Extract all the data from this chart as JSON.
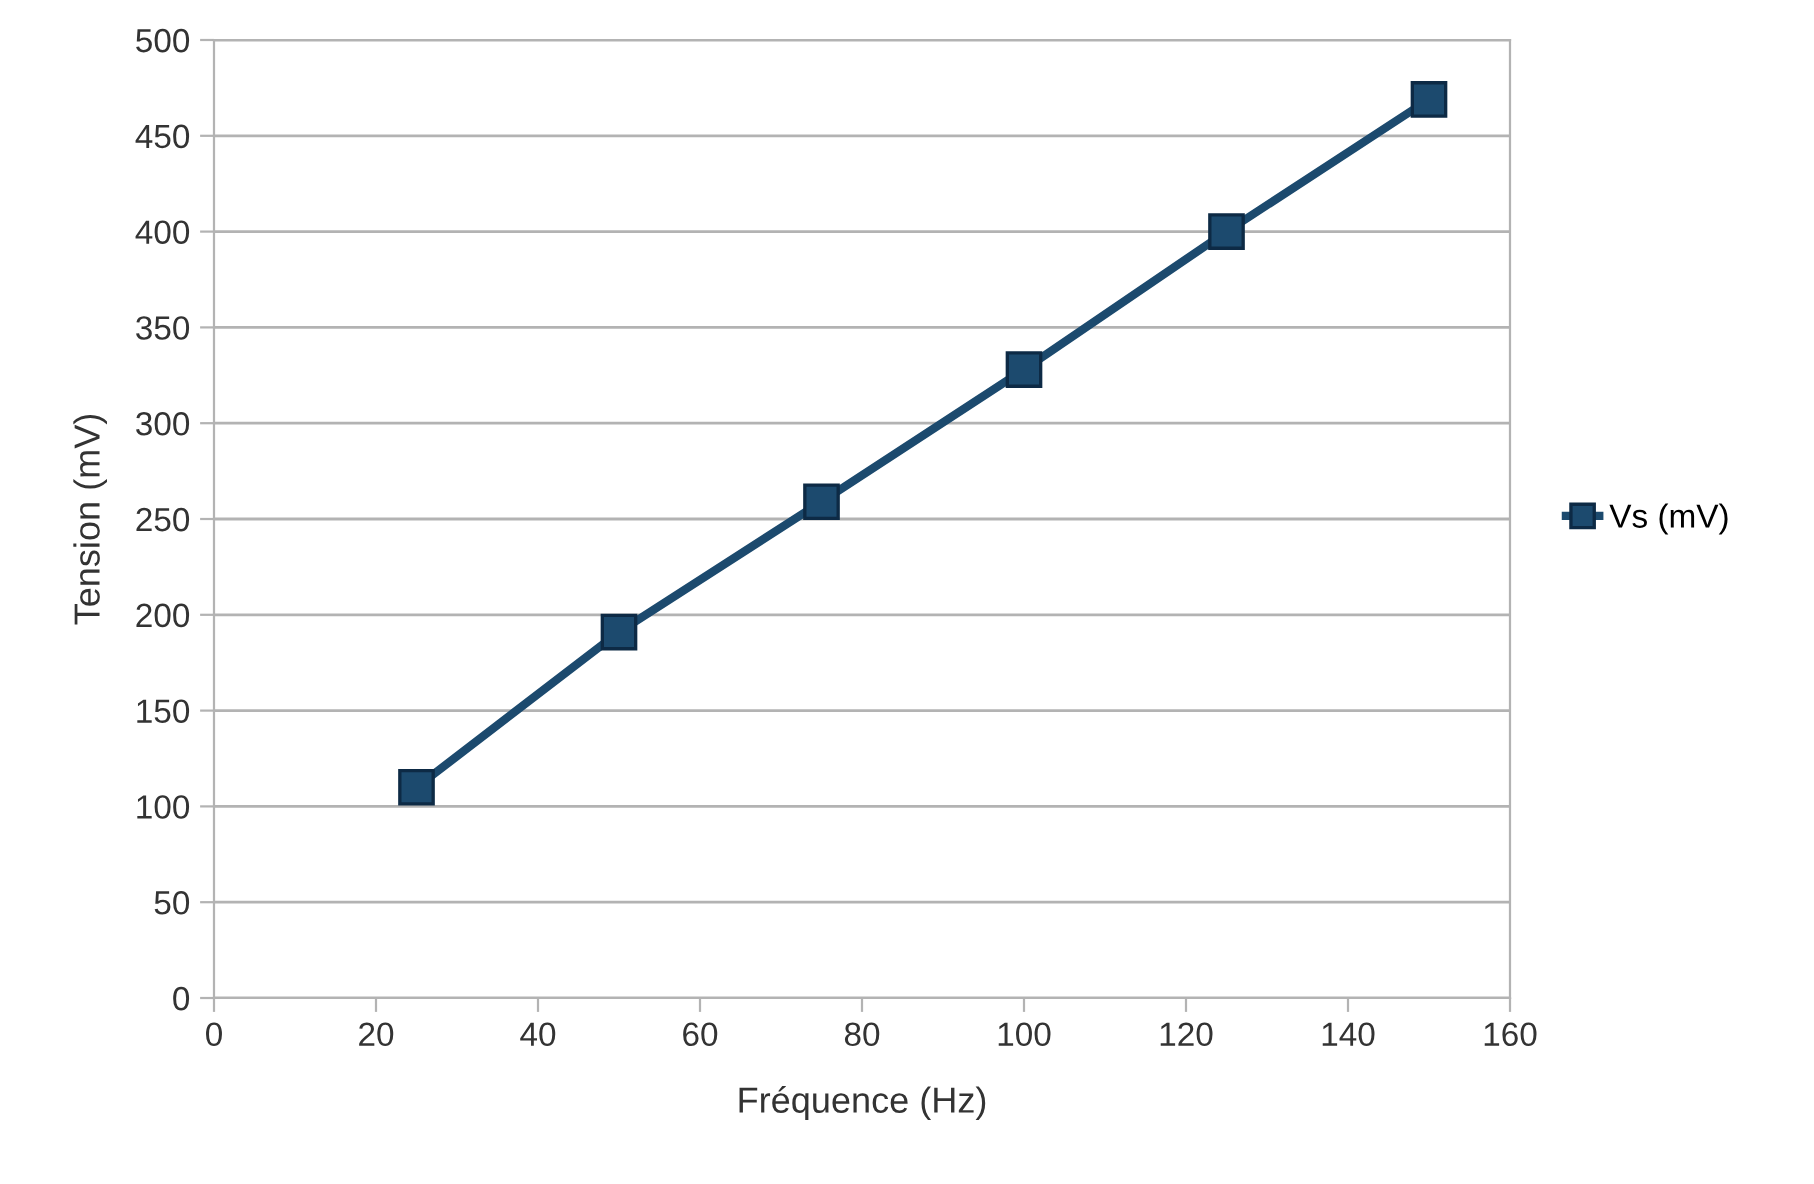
{
  "chart_data": {
    "type": "line",
    "xlabel": "Fréquence (Hz)",
    "ylabel": "Tension (mV)",
    "x": [
      25,
      50,
      75,
      100,
      125,
      150
    ],
    "series": [
      {
        "name": "Vs (mV)",
        "color": "#1c4a6e",
        "values": [
          110,
          191,
          259,
          328,
          400,
          469
        ]
      }
    ],
    "xlim": [
      0,
      160
    ],
    "xticks": [
      0,
      20,
      40,
      60,
      80,
      100,
      120,
      140,
      160
    ],
    "ylim": [
      0,
      500
    ],
    "yticks": [
      0,
      50,
      100,
      150,
      200,
      250,
      300,
      350,
      400,
      450,
      500
    ],
    "grid": "y",
    "legend": "right",
    "marker": "square",
    "line_style": "solid"
  }
}
